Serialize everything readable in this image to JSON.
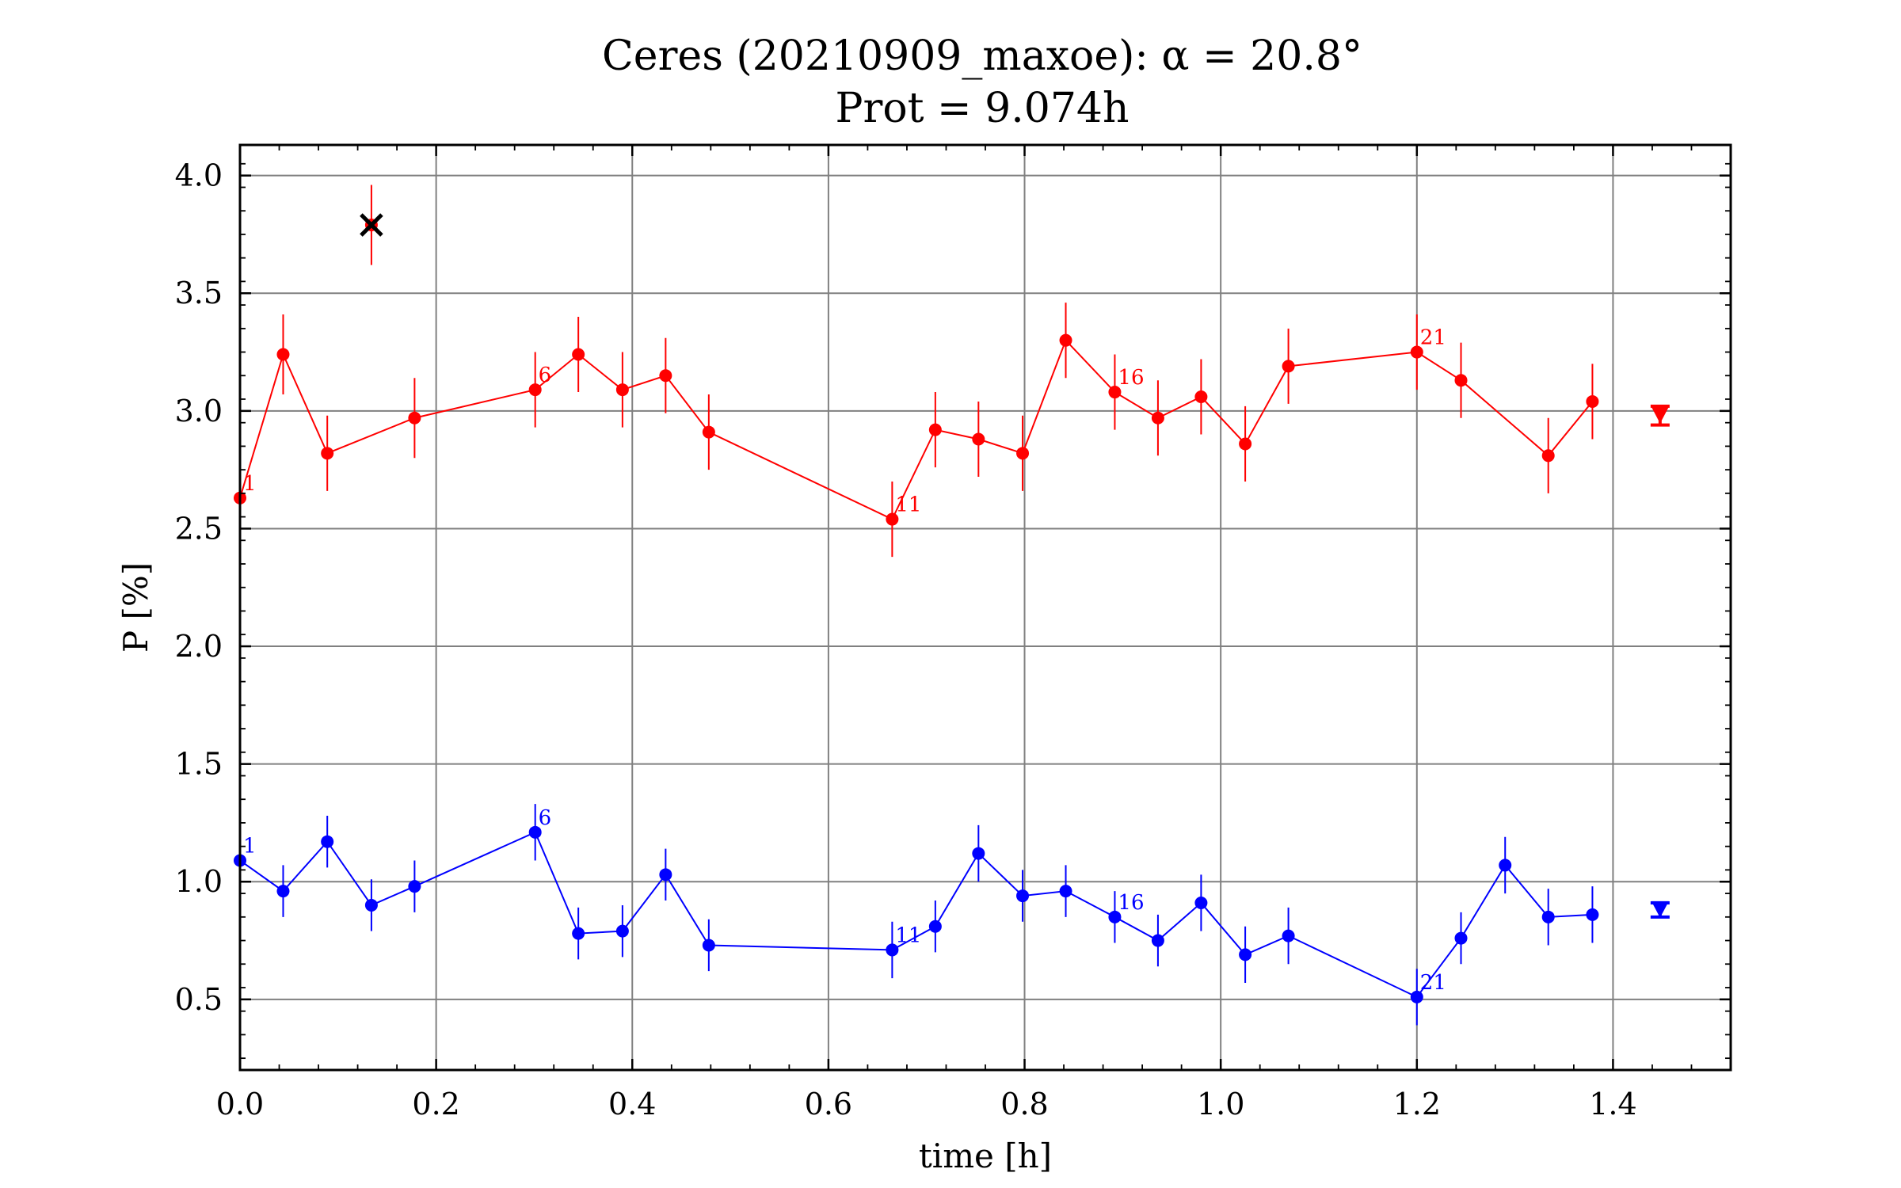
{
  "chart_data": {
    "type": "scatter",
    "title": "Ceres (20210909_maxoe): α = 20.8°",
    "subtitle": "Prot = 9.074h",
    "xlabel": "time [h]",
    "ylabel": "P [%]",
    "xlim": [
      0.0,
      1.52
    ],
    "ylim": [
      0.2,
      4.13
    ],
    "xticks": [
      0.0,
      0.2,
      0.4,
      0.6,
      0.8,
      1.0,
      1.2,
      1.4
    ],
    "xtick_labels": [
      "0.0",
      "0.2",
      "0.4",
      "0.6",
      "0.8",
      "1.0",
      "1.2",
      "1.4"
    ],
    "yticks": [
      0.5,
      1.0,
      1.5,
      2.0,
      2.5,
      3.0,
      3.5,
      4.0
    ],
    "ytick_labels": [
      "0.5",
      "1.0",
      "1.5",
      "2.0",
      "2.5",
      "3.0",
      "3.5",
      "4.0"
    ],
    "grid": true,
    "series": [
      {
        "color": "#ff0000",
        "x": [
          0.0,
          0.044,
          0.089,
          0.178,
          0.301,
          0.345,
          0.39,
          0.434,
          0.478,
          0.665,
          0.709,
          0.753,
          0.798,
          0.842,
          0.892,
          0.936,
          0.98,
          1.025,
          1.069,
          1.2,
          1.245,
          1.334,
          1.379
        ],
        "y": [
          2.63,
          3.24,
          2.82,
          2.97,
          3.09,
          3.24,
          3.09,
          3.15,
          2.91,
          2.54,
          2.92,
          2.88,
          2.82,
          3.3,
          3.08,
          2.97,
          3.06,
          2.86,
          3.19,
          3.25,
          3.13,
          2.81,
          3.04
        ],
        "err": [
          0.16,
          0.17,
          0.16,
          0.17,
          0.16,
          0.16,
          0.16,
          0.16,
          0.16,
          0.16,
          0.16,
          0.16,
          0.16,
          0.16,
          0.16,
          0.16,
          0.16,
          0.16,
          0.16,
          0.16,
          0.16,
          0.16,
          0.16
        ],
        "point_labels": [
          "1",
          "",
          "",
          "",
          "6",
          "",
          "",
          "",
          "",
          "11",
          "",
          "",
          "",
          "",
          "16",
          "",
          "",
          "",
          "",
          "21",
          "",
          "",
          ""
        ],
        "outlier": {
          "x": 0.134,
          "y": 3.79,
          "err": 0.17
        },
        "mean": {
          "x": 1.448,
          "y": 2.98,
          "err": 0.04
        }
      },
      {
        "color": "#0000ff",
        "x": [
          0.0,
          0.044,
          0.089,
          0.134,
          0.178,
          0.301,
          0.345,
          0.39,
          0.434,
          0.478,
          0.665,
          0.709,
          0.753,
          0.798,
          0.842,
          0.892,
          0.936,
          0.98,
          1.025,
          1.069,
          1.2,
          1.245,
          1.29,
          1.334,
          1.379
        ],
        "y": [
          1.09,
          0.96,
          1.17,
          0.9,
          0.98,
          1.21,
          0.78,
          0.79,
          1.03,
          0.73,
          0.71,
          0.81,
          1.12,
          0.94,
          0.96,
          0.85,
          0.75,
          0.91,
          0.69,
          0.77,
          0.51,
          0.76,
          1.07,
          0.85,
          0.86
        ],
        "err": [
          0.1,
          0.11,
          0.11,
          0.11,
          0.11,
          0.12,
          0.11,
          0.11,
          0.11,
          0.11,
          0.12,
          0.11,
          0.12,
          0.11,
          0.11,
          0.11,
          0.11,
          0.12,
          0.12,
          0.12,
          0.12,
          0.11,
          0.12,
          0.12,
          0.12
        ],
        "point_labels": [
          "1",
          "",
          "",
          "",
          "",
          "6",
          "",
          "",
          "",
          "",
          "11",
          "",
          "",
          "",
          "",
          "16",
          "",
          "",
          "",
          "",
          "21",
          "",
          "",
          "",
          ""
        ],
        "mean": {
          "x": 1.448,
          "y": 0.88,
          "err": 0.03
        }
      }
    ]
  }
}
